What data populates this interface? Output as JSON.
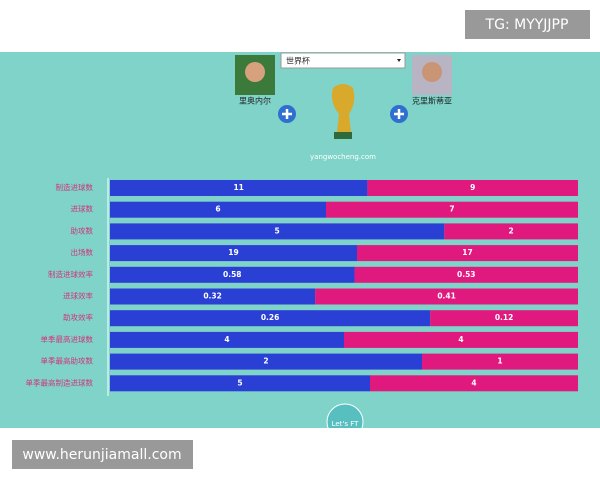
{
  "watermark_top": "TG: MYYJJPP",
  "watermark_bottom": "www.herunjiamall.com",
  "header": {
    "dropdown": "世界杯",
    "player_left": "里奥内尔",
    "player_right": "克里斯蒂亚",
    "site": "yangwocheng.com",
    "button": "Let's FT"
  },
  "chart_data": {
    "type": "bar",
    "categories": [
      "制造进球数",
      "进球数",
      "助攻数",
      "出场数",
      "制造进球效率",
      "进球效率",
      "助攻效率",
      "单季最高进球数",
      "单季最高助攻数",
      "单季最高制造进球数"
    ],
    "series": [
      {
        "color": "#2a3fd4",
        "values": [
          11,
          6,
          5,
          19,
          0.58,
          0.32,
          0.26,
          4,
          2,
          5
        ]
      },
      {
        "color": "#e0197f",
        "values": [
          9,
          7,
          2,
          17,
          0.53,
          0.41,
          0.12,
          4,
          1,
          4
        ]
      }
    ]
  }
}
